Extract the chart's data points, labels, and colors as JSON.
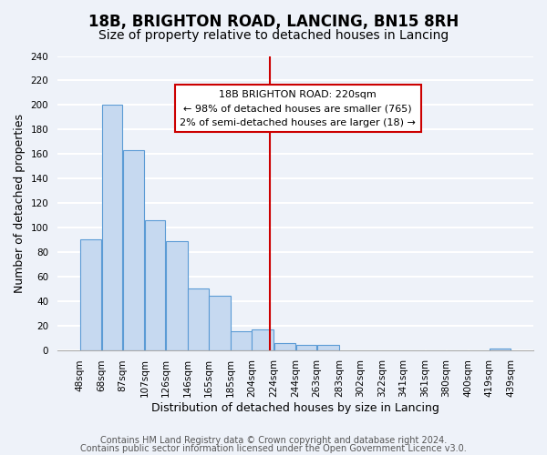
{
  "title": "18B, BRIGHTON ROAD, LANCING, BN15 8RH",
  "subtitle": "Size of property relative to detached houses in Lancing",
  "xlabel": "Distribution of detached houses by size in Lancing",
  "ylabel": "Number of detached properties",
  "bar_left_edges": [
    48,
    68,
    87,
    107,
    126,
    146,
    165,
    185,
    204,
    224,
    244,
    263,
    283,
    302,
    322,
    341,
    361,
    380,
    400,
    419
  ],
  "bar_heights": [
    90,
    200,
    163,
    106,
    89,
    50,
    44,
    15,
    17,
    6,
    4,
    4,
    0,
    0,
    0,
    0,
    0,
    0,
    0,
    1
  ],
  "bar_widths": [
    20,
    19,
    20,
    19,
    20,
    19,
    20,
    19,
    20,
    20,
    19,
    20,
    19,
    20,
    19,
    20,
    19,
    20,
    19,
    20
  ],
  "tick_labels": [
    "48sqm",
    "68sqm",
    "87sqm",
    "107sqm",
    "126sqm",
    "146sqm",
    "165sqm",
    "185sqm",
    "204sqm",
    "224sqm",
    "244sqm",
    "263sqm",
    "283sqm",
    "302sqm",
    "322sqm",
    "341sqm",
    "361sqm",
    "380sqm",
    "400sqm",
    "419sqm",
    "439sqm"
  ],
  "tick_positions": [
    48,
    68,
    87,
    107,
    126,
    146,
    165,
    185,
    204,
    224,
    244,
    263,
    283,
    302,
    322,
    341,
    361,
    380,
    400,
    419,
    439
  ],
  "bar_color": "#c6d9f0",
  "bar_edge_color": "#5b9bd5",
  "vline_x": 220,
  "vline_color": "#cc0000",
  "annotation_title": "18B BRIGHTON ROAD: 220sqm",
  "annotation_line1": "← 98% of detached houses are smaller (765)",
  "annotation_line2": "2% of semi-detached houses are larger (18) →",
  "annotation_box_color": "#ffffff",
  "annotation_box_edge": "#cc0000",
  "ylim": [
    0,
    240
  ],
  "xlim": [
    28,
    459
  ],
  "yticks": [
    0,
    20,
    40,
    60,
    80,
    100,
    120,
    140,
    160,
    180,
    200,
    220,
    240
  ],
  "footer1": "Contains HM Land Registry data © Crown copyright and database right 2024.",
  "footer2": "Contains public sector information licensed under the Open Government Licence v3.0.",
  "bg_color": "#eef2f9",
  "plot_bg_color": "#eef2f9",
  "grid_color": "#ffffff",
  "title_fontsize": 12,
  "subtitle_fontsize": 10,
  "axis_label_fontsize": 9,
  "tick_fontsize": 7.5,
  "footer_fontsize": 7
}
